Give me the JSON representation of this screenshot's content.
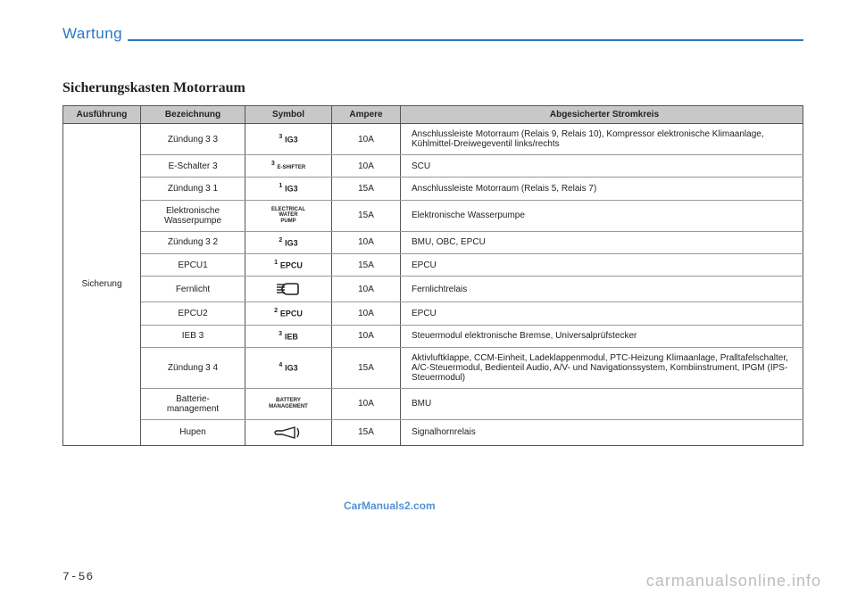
{
  "header": {
    "title": "Wartung"
  },
  "section": {
    "title": "Sicherungskasten Motorraum"
  },
  "table": {
    "columns": [
      "Ausführung",
      "Bezeichnung",
      "Symbol",
      "Ampere",
      "Abgesicherter Stromkreis"
    ],
    "group_label": "Sicherung",
    "rows": [
      {
        "bez": "Zündung 3 3",
        "sym_sup": "3",
        "sym_main": "IG3",
        "sym_kind": "sup",
        "amp": "10A",
        "abs": "Anschlussleiste Motorraum (Relais 9, Relais 10), Kompressor elektronische Klimaanlage, Kühlmittel-Dreiwegeventil links/rechts"
      },
      {
        "bez": "E-Schalter 3",
        "sym_sup": "3",
        "sym_main": "E-SHIFTER",
        "sym_kind": "sup-tiny",
        "amp": "10A",
        "abs": "SCU"
      },
      {
        "bez": "Zündung 3 1",
        "sym_sup": "1",
        "sym_main": "IG3",
        "sym_kind": "sup",
        "amp": "15A",
        "abs": "Anschlussleiste Motorraum (Relais 5, Relais 7)"
      },
      {
        "bez": "Elektronische Wasserpumpe",
        "sym_main": "ELECTRICAL\nWATER\nPUMP",
        "sym_kind": "tiny",
        "amp": "15A",
        "abs": "Elektronische Wasserpumpe"
      },
      {
        "bez": "Zündung 3 2",
        "sym_sup": "2",
        "sym_main": "IG3",
        "sym_kind": "sup",
        "amp": "10A",
        "abs": "BMU, OBC, EPCU"
      },
      {
        "bez": "EPCU1",
        "sym_sup": "1",
        "sym_main": "EPCU",
        "sym_kind": "sup",
        "amp": "15A",
        "abs": "EPCU"
      },
      {
        "bez": "Fernlicht",
        "sym_kind": "icon-beam",
        "amp": "10A",
        "abs": "Fernlichtrelais"
      },
      {
        "bez": "EPCU2",
        "sym_sup": "2",
        "sym_main": "EPCU",
        "sym_kind": "sup",
        "amp": "10A",
        "abs": "EPCU"
      },
      {
        "bez": "IEB 3",
        "sym_sup": "3",
        "sym_main": "IEB",
        "sym_kind": "sup",
        "amp": "10A",
        "abs": "Steuermodul elektronische Bremse, Universalprüfstecker"
      },
      {
        "bez": "Zündung 3 4",
        "sym_sup": "4",
        "sym_main": "IG3",
        "sym_kind": "sup",
        "amp": "15A",
        "abs": "Aktivluftklappe, CCM-Einheit, Ladeklappenmodul, PTC-Heizung Klimaanlage, Pralltafelschalter, A/C-Steuermodul, Bedienteil Audio, A/V- und Navigationssystem, Kombiinstrument, IPGM (IPS-Steuermodul)"
      },
      {
        "bez": "Batterie-\nmanagement",
        "sym_main": "BATTERY\nMANAGEMENT",
        "sym_kind": "tiny",
        "amp": "10A",
        "abs": "BMU"
      },
      {
        "bez": "Hupen",
        "sym_kind": "icon-horn",
        "amp": "15A",
        "abs": "Signalhornrelais"
      }
    ]
  },
  "page_number": "7-56",
  "watermarks": {
    "wm1": "CarManuals2.com",
    "wm2": "carmanualsonline.info"
  },
  "colors": {
    "accent": "#2a77c9",
    "header_bg": "#c7c8ca",
    "border_dark": "#555555",
    "border_light": "#999999",
    "text": "#222222",
    "wm_gray": "#bdbdbd"
  }
}
